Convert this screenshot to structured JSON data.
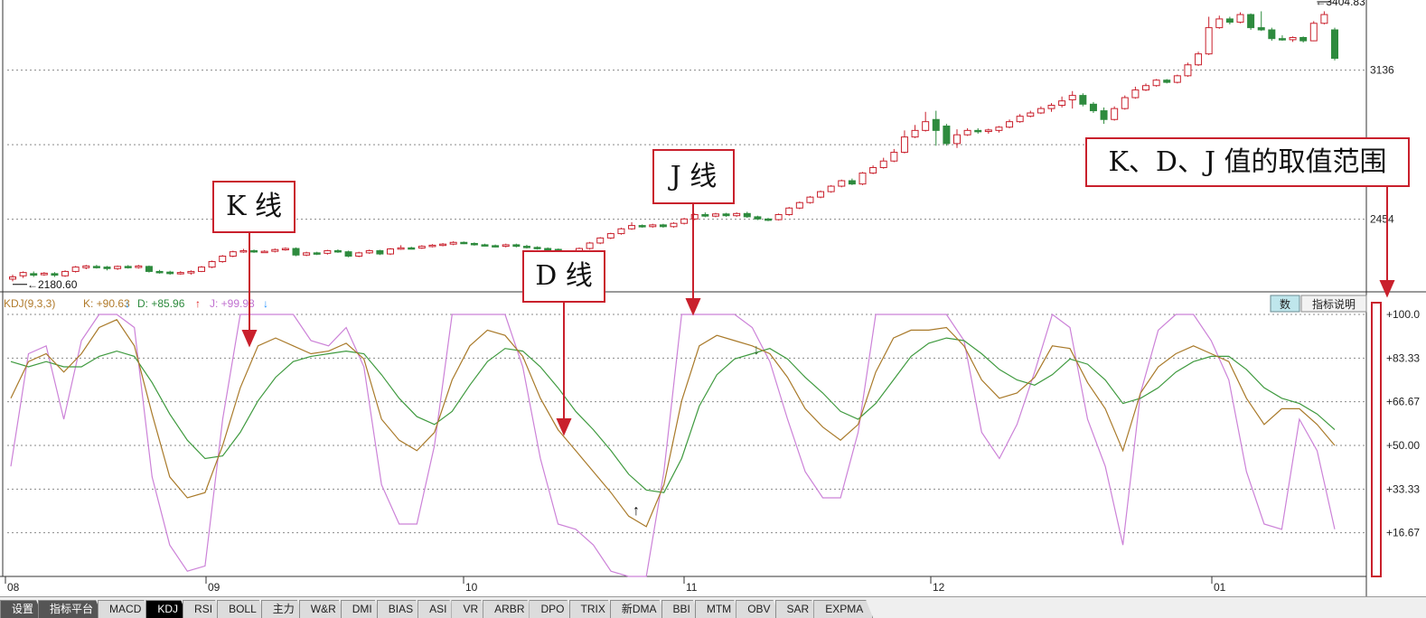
{
  "chart_data": [
    {
      "type": "candlestick",
      "title": "",
      "x_labels": [
        "08",
        "09",
        "10",
        "11",
        "12",
        "01"
      ],
      "y_ticks": [
        2454,
        3136
      ],
      "ylim": [
        2130,
        3440
      ],
      "annotations": {
        "low": "2180.60",
        "high": "3404.83"
      },
      "candles": [
        [
          2180,
          2190,
          2170,
          2200
        ],
        [
          2195,
          2210,
          2185,
          2215
        ],
        [
          2205,
          2198,
          2190,
          2215
        ],
        [
          2200,
          2207,
          2195,
          2212
        ],
        [
          2205,
          2198,
          2190,
          2212
        ],
        [
          2195,
          2215,
          2190,
          2220
        ],
        [
          2215,
          2235,
          2210,
          2240
        ],
        [
          2232,
          2240,
          2225,
          2245
        ],
        [
          2238,
          2233,
          2228,
          2245
        ],
        [
          2235,
          2228,
          2220,
          2240
        ],
        [
          2228,
          2238,
          2222,
          2242
        ],
        [
          2238,
          2233,
          2228,
          2244
        ],
        [
          2233,
          2240,
          2228,
          2245
        ],
        [
          2238,
          2215,
          2210,
          2242
        ],
        [
          2215,
          2210,
          2205,
          2222
        ],
        [
          2212,
          2205,
          2200,
          2218
        ],
        [
          2205,
          2210,
          2200,
          2216
        ],
        [
          2208,
          2215,
          2200,
          2220
        ],
        [
          2215,
          2235,
          2212,
          2240
        ],
        [
          2235,
          2260,
          2230,
          2265
        ],
        [
          2260,
          2285,
          2255,
          2290
        ],
        [
          2285,
          2305,
          2280,
          2310
        ],
        [
          2305,
          2310,
          2300,
          2318
        ],
        [
          2310,
          2305,
          2300,
          2315
        ],
        [
          2305,
          2307,
          2300,
          2312
        ],
        [
          2307,
          2315,
          2302,
          2320
        ],
        [
          2315,
          2320,
          2310,
          2325
        ],
        [
          2320,
          2290,
          2285,
          2325
        ],
        [
          2290,
          2300,
          2285,
          2305
        ],
        [
          2300,
          2298,
          2290,
          2305
        ],
        [
          2298,
          2310,
          2292,
          2314
        ],
        [
          2310,
          2305,
          2300,
          2316
        ],
        [
          2305,
          2285,
          2280,
          2310
        ],
        [
          2285,
          2300,
          2280,
          2305
        ],
        [
          2300,
          2310,
          2295,
          2315
        ],
        [
          2310,
          2295,
          2290,
          2314
        ],
        [
          2295,
          2318,
          2290,
          2322
        ],
        [
          2318,
          2323,
          2314,
          2335
        ],
        [
          2323,
          2322,
          2318,
          2328
        ],
        [
          2322,
          2330,
          2318,
          2335
        ],
        [
          2330,
          2335,
          2325,
          2340
        ],
        [
          2335,
          2340,
          2330,
          2345
        ],
        [
          2340,
          2348,
          2335,
          2353
        ],
        [
          2348,
          2343,
          2340,
          2352
        ],
        [
          2343,
          2337,
          2333,
          2348
        ],
        [
          2337,
          2333,
          2330,
          2342
        ],
        [
          2333,
          2330,
          2325,
          2338
        ],
        [
          2330,
          2337,
          2325,
          2342
        ],
        [
          2337,
          2330,
          2325,
          2342
        ],
        [
          2330,
          2325,
          2320,
          2337
        ],
        [
          2325,
          2320,
          2315,
          2330
        ],
        [
          2320,
          2316,
          2310,
          2325
        ],
        [
          2316,
          2305,
          2300,
          2320
        ],
        [
          2305,
          2290,
          2285,
          2310
        ],
        [
          2292,
          2320,
          2288,
          2325
        ],
        [
          2320,
          2345,
          2315,
          2350
        ],
        [
          2345,
          2368,
          2340,
          2372
        ],
        [
          2368,
          2388,
          2363,
          2392
        ],
        [
          2388,
          2410,
          2383,
          2415
        ],
        [
          2410,
          2425,
          2405,
          2440
        ],
        [
          2425,
          2420,
          2415,
          2430
        ],
        [
          2420,
          2428,
          2415,
          2433
        ],
        [
          2428,
          2420,
          2415,
          2433
        ],
        [
          2420,
          2435,
          2415,
          2440
        ],
        [
          2435,
          2455,
          2430,
          2460
        ],
        [
          2455,
          2475,
          2450,
          2480
        ],
        [
          2475,
          2468,
          2463,
          2485
        ],
        [
          2468,
          2478,
          2463,
          2483
        ],
        [
          2478,
          2470,
          2465,
          2483
        ],
        [
          2470,
          2480,
          2465,
          2485
        ],
        [
          2480,
          2465,
          2460,
          2488
        ],
        [
          2465,
          2455,
          2450,
          2470
        ],
        [
          2455,
          2452,
          2445,
          2460
        ],
        [
          2452,
          2475,
          2448,
          2480
        ],
        [
          2475,
          2505,
          2470,
          2510
        ],
        [
          2505,
          2530,
          2500,
          2535
        ],
        [
          2530,
          2555,
          2525,
          2560
        ],
        [
          2555,
          2580,
          2550,
          2585
        ],
        [
          2580,
          2605,
          2575,
          2610
        ],
        [
          2605,
          2630,
          2600,
          2635
        ],
        [
          2630,
          2615,
          2610,
          2640
        ],
        [
          2615,
          2665,
          2610,
          2670
        ],
        [
          2665,
          2690,
          2660,
          2700
        ],
        [
          2690,
          2720,
          2685,
          2735
        ],
        [
          2720,
          2760,
          2715,
          2775
        ],
        [
          2760,
          2830,
          2755,
          2860
        ],
        [
          2830,
          2860,
          2825,
          2885
        ],
        [
          2860,
          2900,
          2855,
          2945
        ],
        [
          2910,
          2860,
          2790,
          2950
        ],
        [
          2880,
          2800,
          2790,
          2890
        ],
        [
          2800,
          2840,
          2780,
          2865
        ],
        [
          2840,
          2860,
          2835,
          2870
        ],
        [
          2860,
          2855,
          2845,
          2870
        ],
        [
          2855,
          2862,
          2845,
          2868
        ],
        [
          2860,
          2875,
          2850,
          2880
        ],
        [
          2875,
          2900,
          2870,
          2910
        ],
        [
          2900,
          2925,
          2895,
          2935
        ],
        [
          2925,
          2940,
          2920,
          2950
        ],
        [
          2940,
          2960,
          2935,
          2970
        ],
        [
          2960,
          2975,
          2945,
          2985
        ],
        [
          2975,
          2995,
          2965,
          3015
        ],
        [
          3000,
          3020,
          2960,
          3040
        ],
        [
          3020,
          2980,
          2970,
          3030
        ],
        [
          2980,
          2950,
          2940,
          2990
        ],
        [
          2950,
          2910,
          2890,
          2965
        ],
        [
          2910,
          2960,
          2905,
          2970
        ],
        [
          2960,
          3010,
          2955,
          3020
        ],
        [
          3010,
          3045,
          3005,
          3060
        ],
        [
          3045,
          3065,
          3040,
          3075
        ],
        [
          3065,
          3090,
          3060,
          3095
        ],
        [
          3090,
          3080,
          3075,
          3095
        ],
        [
          3080,
          3110,
          3075,
          3115
        ],
        [
          3110,
          3160,
          3105,
          3170
        ],
        [
          3160,
          3210,
          3155,
          3220
        ],
        [
          3210,
          3330,
          3205,
          3380
        ],
        [
          3330,
          3370,
          3325,
          3385
        ],
        [
          3370,
          3355,
          3345,
          3380
        ],
        [
          3355,
          3390,
          3350,
          3400
        ],
        [
          3390,
          3330,
          3320,
          3395
        ],
        [
          3330,
          3320,
          3315,
          3404.83
        ],
        [
          3320,
          3280,
          3270,
          3330
        ],
        [
          3280,
          3275,
          3270,
          3295
        ],
        [
          3275,
          3285,
          3265,
          3290
        ],
        [
          3285,
          3270,
          3262,
          3290
        ],
        [
          3270,
          3350,
          3268,
          3360
        ],
        [
          3350,
          3390,
          3345,
          3404.83
        ],
        [
          3320,
          3190,
          3180,
          3330
        ]
      ]
    },
    {
      "type": "line",
      "title": "KDJ(9,3,3)",
      "ylim": [
        0,
        100
      ],
      "y_ticks": [
        "+16.67",
        "+33.33",
        "+50.00",
        "+66.67",
        "+83.33",
        "+100.0"
      ],
      "legend": {
        "name": "KDJ(9,3,3)",
        "k": "K: +90.63",
        "d": "D: +85.96",
        "j": "J: +99.98"
      },
      "series": [
        {
          "name": "K",
          "color": "#a97a2a",
          "values": [
            68,
            82,
            85,
            78,
            85,
            95,
            98,
            88,
            62,
            38,
            30,
            32,
            50,
            72,
            88,
            91,
            88,
            85,
            86,
            89,
            83,
            60,
            52,
            48,
            55,
            75,
            88,
            94,
            92,
            84,
            68,
            56,
            48,
            40,
            32,
            23,
            19,
            35,
            67,
            88,
            92,
            90,
            88,
            85,
            76,
            64,
            57,
            52,
            58,
            78,
            91,
            94,
            94,
            95,
            88,
            75,
            68,
            70,
            76,
            88,
            87,
            74,
            64,
            48,
            70,
            80,
            85,
            88,
            85,
            82,
            68,
            58,
            64,
            64,
            58,
            50
          ]
        },
        {
          "name": "D",
          "color": "#3f9a3f",
          "values": [
            82,
            80,
            82,
            80,
            80,
            84,
            86,
            84,
            74,
            62,
            52,
            45,
            46,
            55,
            67,
            76,
            82,
            84,
            85,
            86,
            85,
            77,
            68,
            61,
            58,
            63,
            73,
            82,
            87,
            86,
            80,
            72,
            63,
            56,
            48,
            39,
            33,
            32,
            45,
            65,
            77,
            83,
            85,
            87,
            83,
            76,
            70,
            63,
            60,
            66,
            75,
            84,
            89,
            91,
            90,
            85,
            79,
            75,
            73,
            77,
            83,
            81,
            75,
            66,
            68,
            72,
            78,
            82,
            84,
            84,
            79,
            72,
            68,
            66,
            62,
            56
          ]
        },
        {
          "name": "J",
          "color": "#cc82d8",
          "values": [
            42,
            85,
            88,
            60,
            90,
            100,
            100,
            95,
            38,
            12,
            2,
            4,
            60,
            100,
            100,
            100,
            100,
            90,
            88,
            95,
            80,
            35,
            20,
            20,
            50,
            100,
            100,
            100,
            100,
            80,
            45,
            20,
            18,
            12,
            2,
            0,
            0,
            40,
            100,
            100,
            100,
            100,
            95,
            82,
            60,
            40,
            30,
            30,
            55,
            100,
            100,
            100,
            100,
            100,
            90,
            55,
            45,
            58,
            78,
            100,
            95,
            60,
            42,
            12,
            70,
            94,
            100,
            100,
            90,
            75,
            40,
            20,
            18,
            60,
            48,
            18
          ]
        }
      ]
    }
  ],
  "annotations": [
    {
      "id": "k-line",
      "text": "K 线"
    },
    {
      "id": "d-line",
      "text": "D 线"
    },
    {
      "id": "j-line",
      "text": "J 线"
    },
    {
      "id": "range",
      "text": "K、D、J 值的取值范围"
    }
  ],
  "side_buttons": {
    "shu": "数",
    "explain": "指标说明"
  },
  "tabs": [
    "设置",
    "指标平台",
    "MACD",
    "KDJ",
    "RSI",
    "BOLL",
    "主力",
    "W&R",
    "DMI",
    "BIAS",
    "ASI",
    "VR",
    "ARBR",
    "DPO",
    "TRIX",
    "新DMA",
    "BBI",
    "MTM",
    "OBV",
    "SAR",
    "EXPMA"
  ],
  "active_tab": "KDJ",
  "colors": {
    "up": "#c9202c",
    "down": "#2e8b3e",
    "annotation": "#c9202c",
    "grid": "#8a8a8a"
  }
}
